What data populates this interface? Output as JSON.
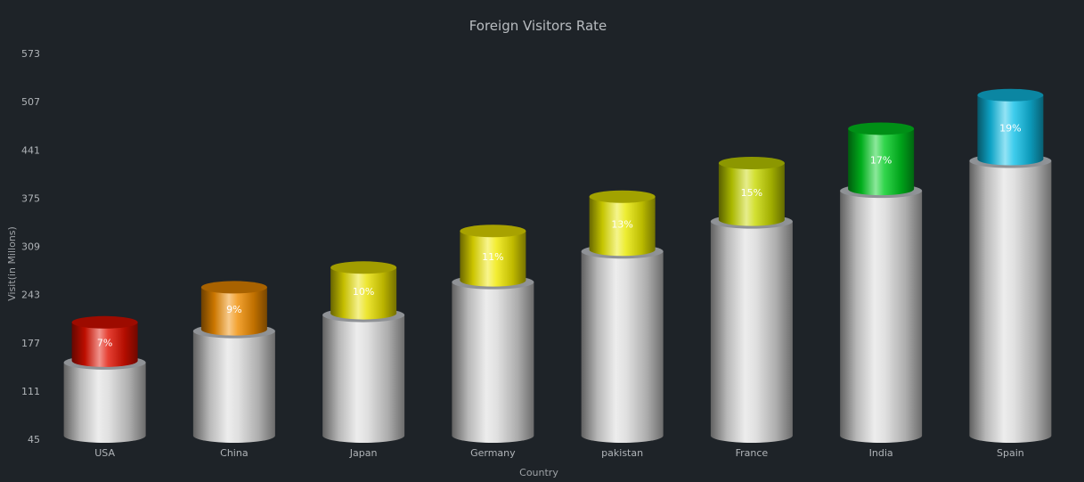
{
  "chart_data": {
    "type": "bar",
    "style": "3d-stacked-cylinder",
    "title": "Foreign Visitors Rate",
    "xlabel": "Country",
    "ylabel": "Visit(in Millons)",
    "yticks": [
      45,
      111,
      177,
      243,
      309,
      375,
      441,
      507,
      573
    ],
    "ylim": [
      45,
      573
    ],
    "grid": false,
    "legend": "none",
    "categories": [
      "USA",
      "China",
      "Japan",
      "Germany",
      "pakistan",
      "France",
      "India",
      "Spain"
    ],
    "series": [
      {
        "values": [
          150,
          193,
          215,
          260,
          302,
          343,
          385,
          426
        ],
        "color": "#d8d8d8"
      },
      {
        "values": [
          55,
          60,
          65,
          70,
          75,
          80,
          85,
          90
        ],
        "labels": [
          "7%",
          "9%",
          "10%",
          "11%",
          "13%",
          "15%",
          "17%",
          "19%"
        ],
        "colors": [
          "#e01000",
          "#f08c00",
          "#e8e000",
          "#f0e800",
          "#e8e800",
          "#c8d800",
          "#00cc20",
          "#10c0e8"
        ]
      }
    ]
  }
}
